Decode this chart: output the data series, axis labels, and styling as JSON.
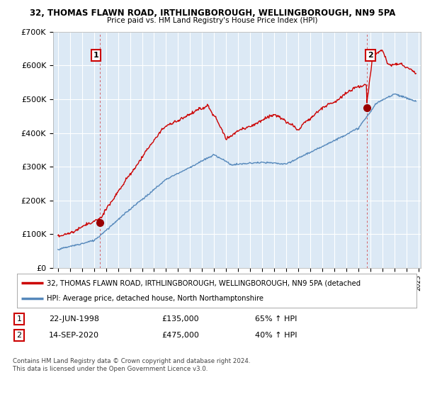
{
  "title_line1": "32, THOMAS FLAWN ROAD, IRTHLINGBOROUGH, WELLINGBOROUGH, NN9 5PA",
  "title_line2": "Price paid vs. HM Land Registry's House Price Index (HPI)",
  "ylim": [
    0,
    700000
  ],
  "yticks": [
    0,
    100000,
    200000,
    300000,
    400000,
    500000,
    600000,
    700000
  ],
  "ytick_labels": [
    "£0",
    "£100K",
    "£200K",
    "£300K",
    "£400K",
    "£500K",
    "£600K",
    "£700K"
  ],
  "sale1_date": 1998.47,
  "sale1_price": 135000,
  "sale1_label": "1",
  "sale2_date": 2020.71,
  "sale2_price": 475000,
  "sale2_label": "2",
  "legend_line1": "32, THOMAS FLAWN ROAD, IRTHLINGBOROUGH, WELLINGBOROUGH, NN9 5PA (detached",
  "legend_line2": "HPI: Average price, detached house, North Northamptonshire",
  "legend_color1": "#cc0000",
  "legend_color2": "#5588bb",
  "table_row1": [
    "1",
    "22-JUN-1998",
    "£135,000",
    "65% ↑ HPI"
  ],
  "table_row2": [
    "2",
    "14-SEP-2020",
    "£475,000",
    "40% ↑ HPI"
  ],
  "footnote": "Contains HM Land Registry data © Crown copyright and database right 2024.\nThis data is licensed under the Open Government Licence v3.0.",
  "background_color": "#ffffff",
  "plot_bg_color": "#dce9f5",
  "grid_color": "#ffffff",
  "hpi_line_color": "#5588bb",
  "sale_line_color": "#cc0000",
  "dot_color": "#990000",
  "xlim_start": 1994.6,
  "xlim_end": 2025.2,
  "xtick_years": [
    1995,
    1996,
    1997,
    1998,
    1999,
    2000,
    2001,
    2002,
    2003,
    2004,
    2005,
    2006,
    2007,
    2008,
    2009,
    2010,
    2011,
    2012,
    2013,
    2014,
    2015,
    2016,
    2017,
    2018,
    2019,
    2020,
    2021,
    2022,
    2023,
    2024,
    2025
  ]
}
